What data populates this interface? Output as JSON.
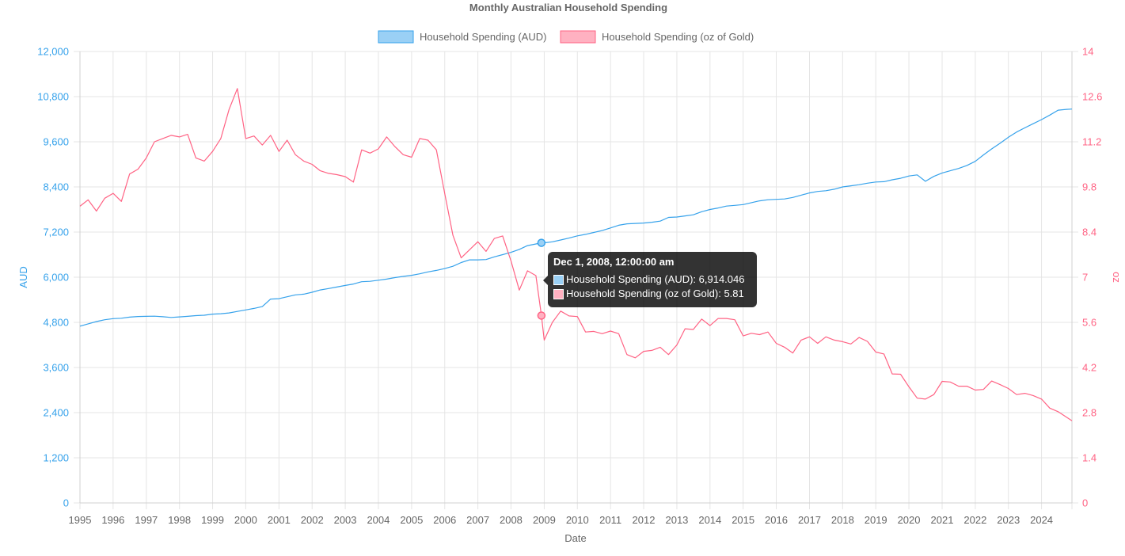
{
  "chart_data": {
    "type": "line",
    "title": "Monthly Australian Household Spending",
    "xlabel": "Date",
    "ylabel_left": "AUD",
    "ylabel_right": "oz",
    "x_range": [
      "1995-01-01",
      "2024-12-01"
    ],
    "x_ticks": [
      "1995",
      "1996",
      "1997",
      "1998",
      "1999",
      "2000",
      "2001",
      "2002",
      "2003",
      "2004",
      "2005",
      "2006",
      "2007",
      "2008",
      "2009",
      "2010",
      "2011",
      "2012",
      "2013",
      "2014",
      "2015",
      "2016",
      "2017",
      "2018",
      "2019",
      "2020",
      "2021",
      "2022",
      "2023",
      "2024"
    ],
    "y_left": {
      "min": 0,
      "max": 12000,
      "ticks": [
        0,
        1200,
        2400,
        3600,
        4800,
        6000,
        7200,
        8400,
        9600,
        10800,
        12000
      ],
      "tick_labels": [
        "0",
        "1,200",
        "2,400",
        "3,600",
        "4,800",
        "6,000",
        "7,200",
        "8,400",
        "9,600",
        "10,800",
        "12,000"
      ]
    },
    "y_right": {
      "min": 0,
      "max": 14,
      "ticks": [
        0,
        1.4,
        2.8,
        4.2,
        5.6,
        7,
        8.4,
        9.8,
        11.2,
        12.6,
        14
      ],
      "tick_labels": [
        "0",
        "1.4",
        "2.8",
        "4.2",
        "5.6",
        "7",
        "8.4",
        "9.8",
        "11.2",
        "12.6",
        "14"
      ]
    },
    "grid": true,
    "legend_position": "top",
    "series": [
      {
        "name": "Household Spending (AUD)",
        "axis": "left",
        "color": "#36a2eb",
        "fill": "#9ad0f5",
        "points": [
          [
            "1995-01-01",
            4700
          ],
          [
            "1995-04-01",
            4760
          ],
          [
            "1995-07-01",
            4820
          ],
          [
            "1995-10-01",
            4870
          ],
          [
            "1996-01-01",
            4900
          ],
          [
            "1996-04-01",
            4910
          ],
          [
            "1996-07-01",
            4940
          ],
          [
            "1996-10-01",
            4955
          ],
          [
            "1997-01-01",
            4960
          ],
          [
            "1997-04-01",
            4965
          ],
          [
            "1997-07-01",
            4950
          ],
          [
            "1997-10-01",
            4930
          ],
          [
            "1998-01-01",
            4945
          ],
          [
            "1998-04-01",
            4960
          ],
          [
            "1998-07-01",
            4980
          ],
          [
            "1998-10-01",
            4990
          ],
          [
            "1999-01-01",
            5020
          ],
          [
            "1999-04-01",
            5030
          ],
          [
            "1999-07-01",
            5050
          ],
          [
            "1999-10-01",
            5090
          ],
          [
            "2000-01-01",
            5130
          ],
          [
            "2000-04-01",
            5170
          ],
          [
            "2000-07-01",
            5220
          ],
          [
            "2000-10-01",
            5420
          ],
          [
            "2001-01-01",
            5430
          ],
          [
            "2001-04-01",
            5480
          ],
          [
            "2001-07-01",
            5530
          ],
          [
            "2001-10-01",
            5550
          ],
          [
            "2002-01-01",
            5600
          ],
          [
            "2002-04-01",
            5660
          ],
          [
            "2002-07-01",
            5700
          ],
          [
            "2002-10-01",
            5740
          ],
          [
            "2003-01-01",
            5780
          ],
          [
            "2003-04-01",
            5820
          ],
          [
            "2003-07-01",
            5880
          ],
          [
            "2003-10-01",
            5890
          ],
          [
            "2004-01-01",
            5920
          ],
          [
            "2004-04-01",
            5950
          ],
          [
            "2004-07-01",
            5990
          ],
          [
            "2004-10-01",
            6020
          ],
          [
            "2005-01-01",
            6050
          ],
          [
            "2005-04-01",
            6090
          ],
          [
            "2005-07-01",
            6140
          ],
          [
            "2005-10-01",
            6180
          ],
          [
            "2006-01-01",
            6230
          ],
          [
            "2006-04-01",
            6290
          ],
          [
            "2006-07-01",
            6390
          ],
          [
            "2006-10-01",
            6460
          ],
          [
            "2007-01-01",
            6460
          ],
          [
            "2007-04-01",
            6470
          ],
          [
            "2007-07-01",
            6540
          ],
          [
            "2007-10-01",
            6600
          ],
          [
            "2008-01-01",
            6660
          ],
          [
            "2008-04-01",
            6740
          ],
          [
            "2008-07-01",
            6840
          ],
          [
            "2008-12-01",
            6914.046
          ],
          [
            "2009-01-01",
            6914
          ],
          [
            "2009-04-01",
            6940
          ],
          [
            "2009-07-01",
            6990
          ],
          [
            "2009-10-01",
            7040
          ],
          [
            "2010-01-01",
            7100
          ],
          [
            "2010-04-01",
            7140
          ],
          [
            "2010-07-01",
            7190
          ],
          [
            "2010-10-01",
            7240
          ],
          [
            "2011-01-01",
            7310
          ],
          [
            "2011-04-01",
            7380
          ],
          [
            "2011-07-01",
            7420
          ],
          [
            "2011-10-01",
            7430
          ],
          [
            "2012-01-01",
            7440
          ],
          [
            "2012-04-01",
            7460
          ],
          [
            "2012-07-01",
            7490
          ],
          [
            "2012-10-01",
            7590
          ],
          [
            "2013-01-01",
            7600
          ],
          [
            "2013-04-01",
            7630
          ],
          [
            "2013-07-01",
            7660
          ],
          [
            "2013-10-01",
            7740
          ],
          [
            "2014-01-01",
            7800
          ],
          [
            "2014-04-01",
            7840
          ],
          [
            "2014-07-01",
            7890
          ],
          [
            "2014-10-01",
            7910
          ],
          [
            "2015-01-01",
            7930
          ],
          [
            "2015-04-01",
            7980
          ],
          [
            "2015-07-01",
            8030
          ],
          [
            "2015-10-01",
            8060
          ],
          [
            "2016-01-01",
            8070
          ],
          [
            "2016-04-01",
            8080
          ],
          [
            "2016-07-01",
            8120
          ],
          [
            "2016-10-01",
            8180
          ],
          [
            "2017-01-01",
            8240
          ],
          [
            "2017-04-01",
            8280
          ],
          [
            "2017-07-01",
            8300
          ],
          [
            "2017-10-01",
            8340
          ],
          [
            "2018-01-01",
            8400
          ],
          [
            "2018-04-01",
            8430
          ],
          [
            "2018-07-01",
            8460
          ],
          [
            "2018-10-01",
            8500
          ],
          [
            "2019-01-01",
            8530
          ],
          [
            "2019-04-01",
            8540
          ],
          [
            "2019-07-01",
            8590
          ],
          [
            "2019-10-01",
            8630
          ],
          [
            "2020-01-01",
            8690
          ],
          [
            "2020-04-01",
            8720
          ],
          [
            "2020-07-01",
            8550
          ],
          [
            "2020-10-01",
            8680
          ],
          [
            "2021-01-01",
            8770
          ],
          [
            "2021-04-01",
            8830
          ],
          [
            "2021-07-01",
            8890
          ],
          [
            "2021-10-01",
            8970
          ],
          [
            "2022-01-01",
            9080
          ],
          [
            "2022-04-01",
            9250
          ],
          [
            "2022-07-01",
            9410
          ],
          [
            "2022-10-01",
            9560
          ],
          [
            "2023-01-01",
            9720
          ],
          [
            "2023-04-01",
            9860
          ],
          [
            "2023-07-01",
            9970
          ],
          [
            "2023-10-01",
            10080
          ],
          [
            "2024-01-01",
            10190
          ],
          [
            "2024-04-01",
            10310
          ],
          [
            "2024-07-01",
            10440
          ],
          [
            "2024-10-01",
            10460
          ],
          [
            "2024-12-01",
            10470
          ]
        ]
      },
      {
        "name": "Household Spending (oz of Gold)",
        "axis": "right",
        "color": "#ff6384",
        "fill": "#ffb1c1",
        "points": [
          [
            "1995-01-01",
            9.2
          ],
          [
            "1995-04-01",
            9.4
          ],
          [
            "1995-07-01",
            9.05
          ],
          [
            "1995-10-01",
            9.45
          ],
          [
            "1996-01-01",
            9.6
          ],
          [
            "1996-04-01",
            9.35
          ],
          [
            "1996-07-01",
            10.2
          ],
          [
            "1996-10-01",
            10.35
          ],
          [
            "1997-01-01",
            10.7
          ],
          [
            "1997-04-01",
            11.2
          ],
          [
            "1997-07-01",
            11.3
          ],
          [
            "1997-10-01",
            11.4
          ],
          [
            "1998-01-01",
            11.35
          ],
          [
            "1998-04-01",
            11.43
          ],
          [
            "1998-07-01",
            10.7
          ],
          [
            "1998-10-01",
            10.6
          ],
          [
            "1999-01-01",
            10.9
          ],
          [
            "1999-04-01",
            11.3
          ],
          [
            "1999-07-01",
            12.2
          ],
          [
            "1999-10-01",
            12.85
          ],
          [
            "2000-01-01",
            11.3
          ],
          [
            "2000-04-01",
            11.38
          ],
          [
            "2000-07-01",
            11.1
          ],
          [
            "2000-10-01",
            11.4
          ],
          [
            "2001-01-01",
            10.9
          ],
          [
            "2001-04-01",
            11.25
          ],
          [
            "2001-07-01",
            10.8
          ],
          [
            "2001-10-01",
            10.6
          ],
          [
            "2002-01-01",
            10.5
          ],
          [
            "2002-04-01",
            10.3
          ],
          [
            "2002-07-01",
            10.22
          ],
          [
            "2002-10-01",
            10.18
          ],
          [
            "2003-01-01",
            10.12
          ],
          [
            "2003-04-01",
            9.95
          ],
          [
            "2003-07-01",
            10.95
          ],
          [
            "2003-10-01",
            10.85
          ],
          [
            "2004-01-01",
            10.98
          ],
          [
            "2004-04-01",
            11.35
          ],
          [
            "2004-07-01",
            11.05
          ],
          [
            "2004-10-01",
            10.8
          ],
          [
            "2005-01-01",
            10.72
          ],
          [
            "2005-04-01",
            11.3
          ],
          [
            "2005-07-01",
            11.25
          ],
          [
            "2005-10-01",
            10.95
          ],
          [
            "2006-01-01",
            9.6
          ],
          [
            "2006-04-01",
            8.3
          ],
          [
            "2006-07-01",
            7.6
          ],
          [
            "2006-10-01",
            7.85
          ],
          [
            "2007-01-01",
            8.1
          ],
          [
            "2007-04-01",
            7.8
          ],
          [
            "2007-07-01",
            8.2
          ],
          [
            "2007-10-01",
            8.28
          ],
          [
            "2008-01-01",
            7.5
          ],
          [
            "2008-04-01",
            6.6
          ],
          [
            "2008-07-01",
            7.2
          ],
          [
            "2008-10-01",
            7.05
          ],
          [
            "2008-12-01",
            5.81
          ],
          [
            "2009-01-01",
            5.05
          ],
          [
            "2009-04-01",
            5.6
          ],
          [
            "2009-07-01",
            5.95
          ],
          [
            "2009-10-01",
            5.8
          ],
          [
            "2010-01-01",
            5.78
          ],
          [
            "2010-04-01",
            5.3
          ],
          [
            "2010-07-01",
            5.32
          ],
          [
            "2010-10-01",
            5.25
          ],
          [
            "2011-01-01",
            5.33
          ],
          [
            "2011-04-01",
            5.25
          ],
          [
            "2011-07-01",
            4.6
          ],
          [
            "2011-10-01",
            4.5
          ],
          [
            "2012-01-01",
            4.7
          ],
          [
            "2012-04-01",
            4.73
          ],
          [
            "2012-07-01",
            4.83
          ],
          [
            "2012-10-01",
            4.6
          ],
          [
            "2013-01-01",
            4.9
          ],
          [
            "2013-04-01",
            5.4
          ],
          [
            "2013-07-01",
            5.38
          ],
          [
            "2013-10-01",
            5.7
          ],
          [
            "2014-01-01",
            5.5
          ],
          [
            "2014-04-01",
            5.72
          ],
          [
            "2014-07-01",
            5.72
          ],
          [
            "2014-10-01",
            5.68
          ],
          [
            "2015-01-01",
            5.18
          ],
          [
            "2015-04-01",
            5.26
          ],
          [
            "2015-07-01",
            5.22
          ],
          [
            "2015-10-01",
            5.3
          ],
          [
            "2016-01-01",
            4.95
          ],
          [
            "2016-04-01",
            4.83
          ],
          [
            "2016-07-01",
            4.65
          ],
          [
            "2016-10-01",
            5.05
          ],
          [
            "2017-01-01",
            5.15
          ],
          [
            "2017-04-01",
            4.95
          ],
          [
            "2017-07-01",
            5.15
          ],
          [
            "2017-10-01",
            5.05
          ],
          [
            "2018-01-01",
            5.0
          ],
          [
            "2018-04-01",
            4.93
          ],
          [
            "2018-07-01",
            5.13
          ],
          [
            "2018-10-01",
            5.01
          ],
          [
            "2019-01-01",
            4.68
          ],
          [
            "2019-04-01",
            4.62
          ],
          [
            "2019-07-01",
            4.0
          ],
          [
            "2019-10-01",
            3.99
          ],
          [
            "2020-01-01",
            3.6
          ],
          [
            "2020-04-01",
            3.25
          ],
          [
            "2020-07-01",
            3.22
          ],
          [
            "2020-10-01",
            3.36
          ],
          [
            "2021-01-01",
            3.77
          ],
          [
            "2021-04-01",
            3.75
          ],
          [
            "2021-07-01",
            3.62
          ],
          [
            "2021-10-01",
            3.62
          ],
          [
            "2022-01-01",
            3.5
          ],
          [
            "2022-04-01",
            3.52
          ],
          [
            "2022-07-01",
            3.78
          ],
          [
            "2022-10-01",
            3.67
          ],
          [
            "2023-01-01",
            3.55
          ],
          [
            "2023-04-01",
            3.36
          ],
          [
            "2023-07-01",
            3.4
          ],
          [
            "2023-10-01",
            3.33
          ],
          [
            "2024-01-01",
            3.22
          ],
          [
            "2024-04-01",
            2.94
          ],
          [
            "2024-07-01",
            2.83
          ],
          [
            "2024-12-01",
            2.55
          ]
        ]
      }
    ],
    "tooltip": {
      "title": "Dec 1, 2008, 12:00:00 am",
      "date": "2008-12-01",
      "rows": [
        "Household Spending (AUD): 6,914.046",
        "Household Spending (oz of Gold): 5.81"
      ]
    }
  }
}
